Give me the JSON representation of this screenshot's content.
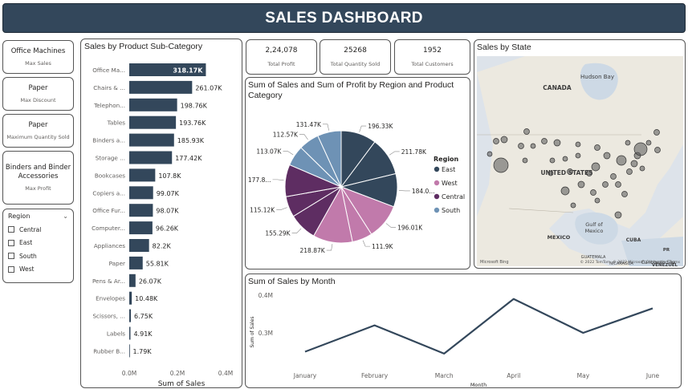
{
  "header": {
    "title": "SALES DASHBOARD"
  },
  "left_cards": [
    {
      "value": "Office Machines",
      "label": "Max Sales"
    },
    {
      "value": "Paper",
      "label": "Max Discount"
    },
    {
      "value": "Paper",
      "label": "Maximum Quantity Sold"
    },
    {
      "value": "Binders and Binder Accessories",
      "label": "Max Profit"
    }
  ],
  "slicer": {
    "title": "Region",
    "items": [
      "Central",
      "East",
      "South",
      "West"
    ]
  },
  "kpis": [
    {
      "value": "2,24,078",
      "label": "Total Profit"
    },
    {
      "value": "25268",
      "label": "Total Quantity Sold"
    },
    {
      "value": "1952",
      "label": "Total Customers"
    }
  ],
  "colors": {
    "bar": "#33475b",
    "east": "#33475b",
    "west": "#c17aab",
    "central": "#5e2d62",
    "south": "#6e92b5",
    "title_bg": "#33475b"
  },
  "chart_data": [
    {
      "type": "bar",
      "title": "Sales by Product Sub-Category",
      "xlabel": "Sum of Sales",
      "categories": [
        "Office Ma...",
        "Chairs & ...",
        "Telephon...",
        "Tables",
        "Binders a...",
        "Storage ...",
        "Bookcases",
        "Copiers a...",
        "Office Fur...",
        "Computer...",
        "Appliances",
        "Paper",
        "Pens & Ar...",
        "Envelopes",
        "Scissors, ...",
        "Labels",
        "Rubber B..."
      ],
      "values": [
        318170,
        261070,
        198760,
        193760,
        185930,
        177420,
        107800,
        99070,
        98070,
        96260,
        82200,
        55810,
        26070,
        10480,
        6750,
        4910,
        1790
      ],
      "data_labels": [
        "318.17K",
        "261.07K",
        "198.76K",
        "193.76K",
        "185.93K",
        "177.42K",
        "107.8K",
        "99.07K",
        "98.07K",
        "96.26K",
        "82.2K",
        "55.81K",
        "26.07K",
        "10.48K",
        "6.75K",
        "4.91K",
        "1.79K"
      ],
      "x_ticks": [
        "0.0M",
        "0.2M",
        "0.4M"
      ],
      "xlim": [
        0,
        400000
      ]
    },
    {
      "type": "pie",
      "title": "Sum of Sales and Sum of Profit by Region and Product Category",
      "legend_title": "Region",
      "legend": [
        {
          "name": "East",
          "color": "#33475b"
        },
        {
          "name": "West",
          "color": "#c17aab"
        },
        {
          "name": "Central",
          "color": "#5e2d62"
        },
        {
          "name": "South",
          "color": "#6e92b5"
        }
      ],
      "slices": [
        {
          "region": "East",
          "value": 196330,
          "label": "196.33K"
        },
        {
          "region": "East",
          "value": 211780,
          "label": "211.78K"
        },
        {
          "region": "East",
          "value": 184000,
          "label": "184.0..."
        },
        {
          "region": "West",
          "value": 196010,
          "label": "196.01K"
        },
        {
          "region": "West",
          "value": 111900,
          "label": "111.9K"
        },
        {
          "region": "West",
          "value": 218870,
          "label": "218.87K"
        },
        {
          "region": "Central",
          "value": 155290,
          "label": "155.29K"
        },
        {
          "region": "Central",
          "value": 115120,
          "label": "115.12K"
        },
        {
          "region": "Central",
          "value": 177800,
          "label": "177.8..."
        },
        {
          "region": "South",
          "value": 113070,
          "label": "113.07K"
        },
        {
          "region": "South",
          "value": 112570,
          "label": "112.57K"
        },
        {
          "region": "South",
          "value": 131470,
          "label": "131.47K"
        }
      ]
    },
    {
      "type": "line",
      "title": "Sum of Sales by Month",
      "xlabel": "Month",
      "ylabel": "Sum of Sales",
      "categories": [
        "January",
        "February",
        "March",
        "April",
        "May",
        "June"
      ],
      "values": [
        250000,
        320000,
        245000,
        390000,
        300000,
        365000
      ],
      "y_ticks": [
        {
          "value": 300000,
          "label": "0.3M"
        },
        {
          "value": 400000,
          "label": "0.4M"
        }
      ],
      "ylim": [
        200000,
        400000
      ]
    }
  ],
  "map": {
    "title": "Sales by State",
    "labels": {
      "canada": "CANADA",
      "us": "UNITED STATES",
      "mexico": "MEXICO",
      "hudson": "Hudson Bay",
      "gulf": "Gulf of\nMexico",
      "cuba": "CUBA",
      "caribbean": "Caribbean Sea",
      "venezuela": "VENEZUEL",
      "gt": "GUATEMALA",
      "ni": "NICARAGUA",
      "pr": "PR"
    },
    "attribution": "© 2022 TomTom, © 2022 Microsoft Corporation  Terms",
    "brand": "Microsoft Bing"
  }
}
